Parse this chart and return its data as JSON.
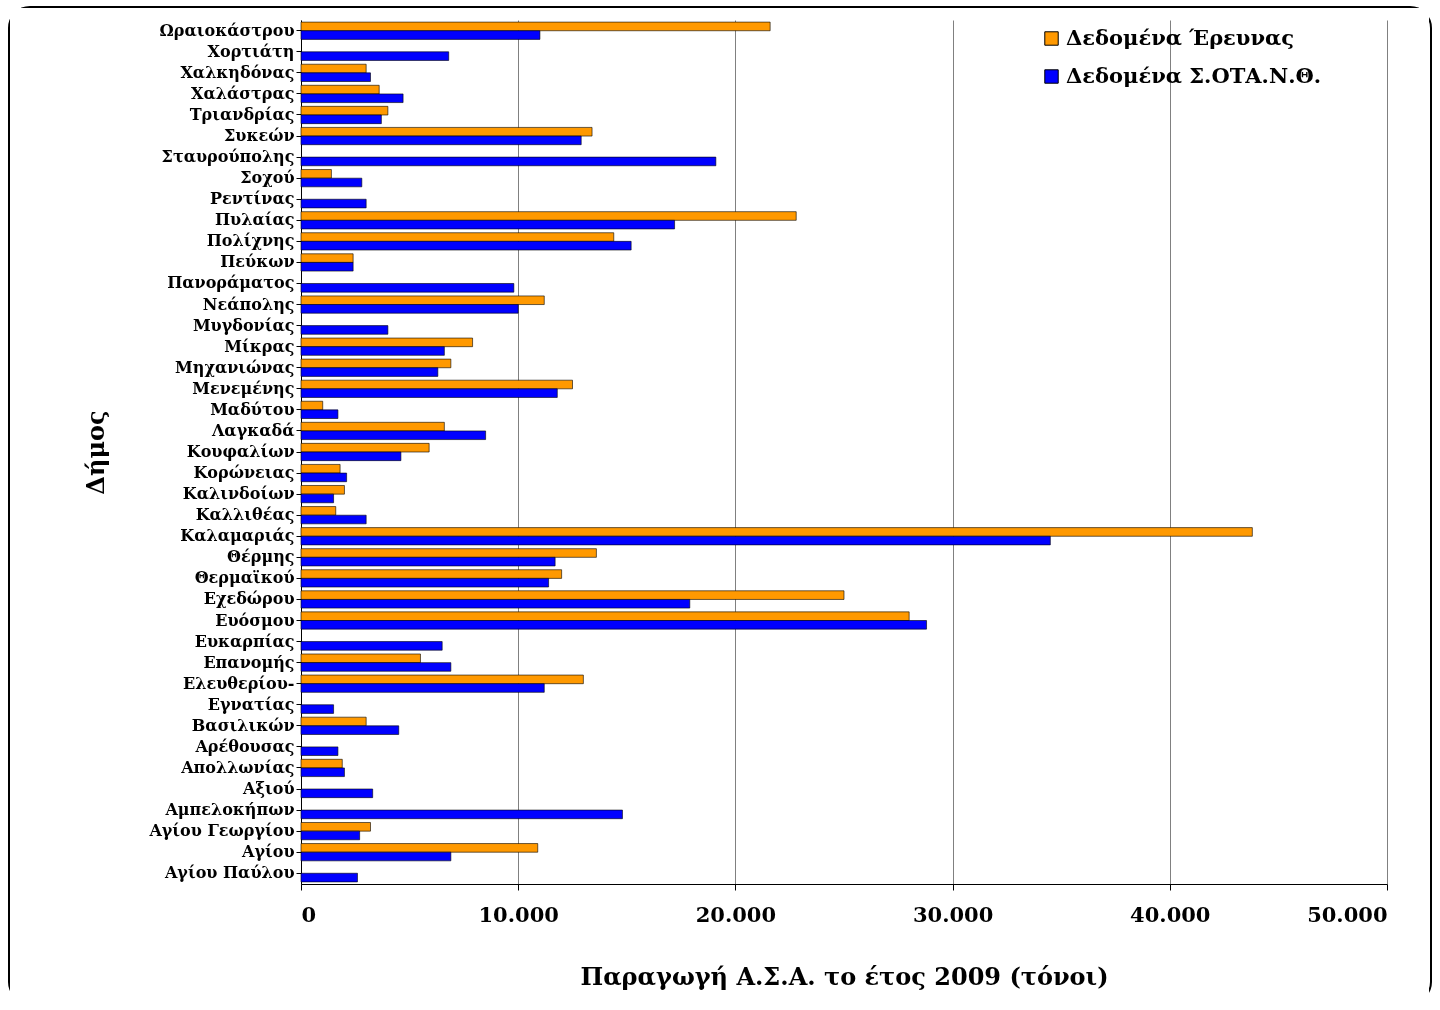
{
  "chart_data": {
    "type": "bar",
    "orientation": "horizontal",
    "xlabel": "Παραγωγή Α.Σ.Α. το έτος 2009 (τόνοι)",
    "ylabel": "Δήμος",
    "categories": [
      "Ωραιοκάστρου",
      "Χορτιάτη",
      "Χαλκηδόνας",
      "Χαλάστρας",
      "Τριανδρίας",
      "Συκεών",
      "Σταυρούπολης",
      "Σοχού",
      "Ρεντίνας",
      "Πυλαίας",
      "Πολίχνης",
      "Πεύκων",
      "Πανοράματος",
      "Νεάπολης",
      "Μυγδονίας",
      "Μίκρας",
      "Μηχανιώνας",
      "Μενεμένης",
      "Μαδύτου",
      "Λαγκαδά",
      "Κουφαλίων",
      "Κορώνειας",
      "Καλινδοίων",
      "Καλλιθέας",
      "Καλαμαριάς",
      "Θέρμης",
      "Θερμαϊκού",
      "Εχεδώρου",
      "Ευόσμου",
      "Ευκαρπίας",
      "Επανομής",
      "Ελευθερίου-",
      "Εγνατίας",
      "Βασιλικών",
      "Αρέθουσας",
      "Απολλωνίας",
      "Αξιού",
      "Αμπελοκήπων",
      "Αγίου Γεωργίου",
      "Αγίου",
      "Αγίου Παύλου"
    ],
    "series": [
      {
        "name": "Δεδομένα Έρευνας",
        "color": "#ff9900",
        "values": [
          21600,
          null,
          3000,
          3600,
          4000,
          13400,
          null,
          1400,
          null,
          22800,
          14400,
          2400,
          null,
          11200,
          null,
          7900,
          6900,
          12500,
          1000,
          6600,
          5900,
          1800,
          2000,
          1600,
          43800,
          13600,
          12000,
          25000,
          28000,
          null,
          5500,
          13000,
          null,
          3000,
          null,
          1900,
          null,
          null,
          3200,
          10900,
          null
        ]
      },
      {
        "name": "Δεδομένα Σ.ΟΤΑ.Ν.Θ.",
        "color": "#0000ff",
        "values": [
          11000,
          6800,
          3200,
          4700,
          3700,
          12900,
          19100,
          2800,
          3000,
          17200,
          15200,
          2400,
          9800,
          10000,
          4000,
          6600,
          6300,
          11800,
          1700,
          8500,
          4600,
          2100,
          1500,
          3000,
          34500,
          11700,
          11400,
          17900,
          28800,
          6500,
          6900,
          11200,
          1500,
          4500,
          1700,
          2000,
          3300,
          14800,
          2700,
          6900,
          2600
        ]
      }
    ],
    "xlim": [
      0,
      50000
    ],
    "xticks": [
      0,
      {
        "value": 10000,
        "label": "10.000"
      },
      {
        "value": 20000,
        "label": "20.000"
      },
      {
        "value": 30000,
        "label": "30.000"
      },
      {
        "value": 40000,
        "label": "40.000"
      },
      {
        "value": 50000,
        "label": "50.000"
      }
    ],
    "grid": "x",
    "legend": "top right"
  }
}
